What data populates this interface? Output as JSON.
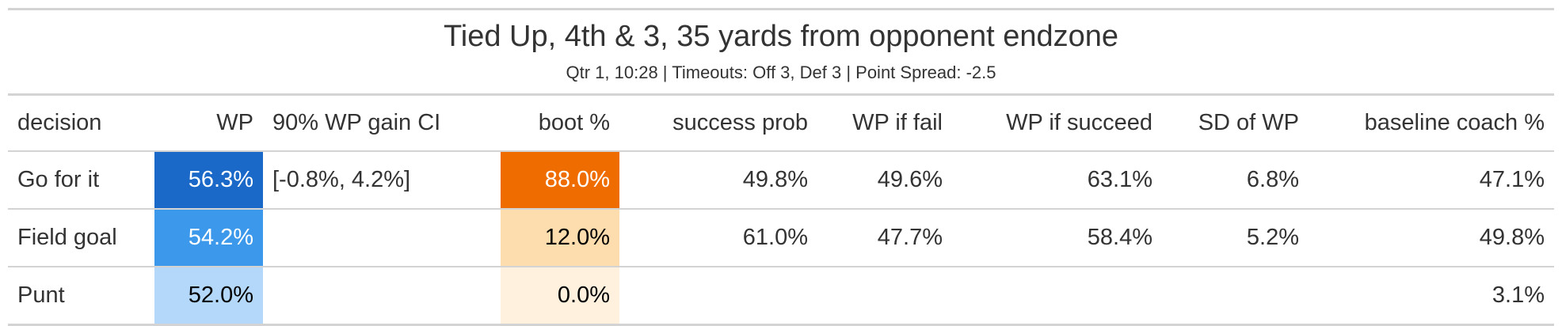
{
  "title": "Tied Up, 4th & 3, 35 yards from opponent endzone",
  "subtitle": "Qtr 1, 10:28 | Timeouts: Off 3, Def 3 | Point Spread: -2.5",
  "columns": [
    "decision",
    "WP",
    "90% WP gain CI",
    "boot %",
    "success prob",
    "WP if fail",
    "WP if succeed",
    "SD of WP",
    "baseline coach %"
  ],
  "rows": [
    {
      "decision": "Go for it",
      "wp": "56.3%",
      "ci": "[-0.8%, 4.2%]",
      "boot": "88.0%",
      "success_prob": "49.8%",
      "wp_fail": "49.6%",
      "wp_succeed": "63.1%",
      "sd_wp": "6.8%",
      "baseline": "47.1%",
      "wp_bg": "#1a68c8",
      "wp_fg": "#ffffff",
      "boot_bg": "#ef6c00",
      "boot_fg": "#ffffff"
    },
    {
      "decision": "Field goal",
      "wp": "54.2%",
      "ci": "",
      "boot": "12.0%",
      "success_prob": "61.0%",
      "wp_fail": "47.7%",
      "wp_succeed": "58.4%",
      "sd_wp": "5.2%",
      "baseline": "49.8%",
      "wp_bg": "#3b98ea",
      "wp_fg": "#ffffff",
      "boot_bg": "#fddcae",
      "boot_fg": "#000000"
    },
    {
      "decision": "Punt",
      "wp": "52.0%",
      "ci": "",
      "boot": "0.0%",
      "success_prob": "",
      "wp_fail": "",
      "wp_succeed": "",
      "sd_wp": "",
      "baseline": "3.1%",
      "wp_bg": "#b3d8fa",
      "wp_fg": "#000000",
      "boot_bg": "#fff1de",
      "boot_fg": "#000000"
    }
  ]
}
